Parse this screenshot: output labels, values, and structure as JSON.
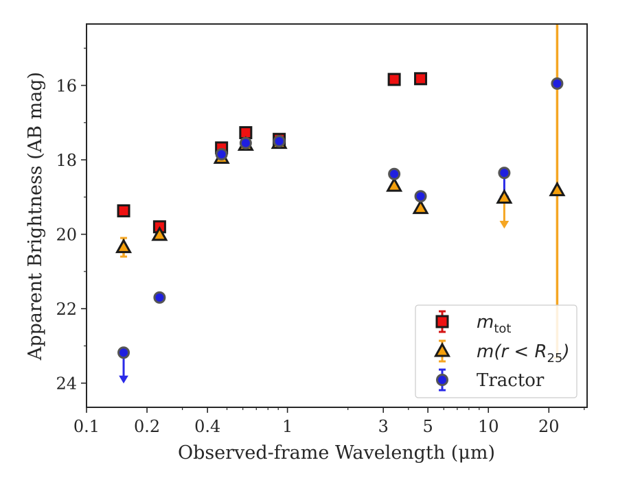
{
  "chart_data": {
    "type": "scatter",
    "x_scale": "log",
    "y_inverted": true,
    "xlabel": "Observed-frame Wavelength (μm)",
    "ylabel": "Apparent Brightness (AB mag)",
    "xlim": [
      0.1,
      31
    ],
    "ylim": [
      24.65,
      14.35
    ],
    "xticks": [
      0.1,
      0.2,
      0.4,
      1,
      3,
      5,
      10,
      20
    ],
    "xtick_labels": [
      "0.1",
      "0.2",
      "0.4",
      "1",
      "3",
      "5",
      "10",
      "20"
    ],
    "yticks": [
      16,
      18,
      20,
      22,
      24
    ],
    "ytick_labels": [
      "16",
      "18",
      "20",
      "22",
      "24"
    ],
    "legend_position": "lower-right",
    "legend": [
      {
        "series": "mtot",
        "label_main": "m",
        "label_sub": "tot"
      },
      {
        "series": "mr25",
        "label_main": "m(r < R",
        "label_sub": "25",
        "label_close": ")"
      },
      {
        "series": "tractor",
        "label_main": "Tractor"
      }
    ],
    "series": [
      {
        "key": "mtot",
        "marker": "square",
        "fill": "#ee1111",
        "error_color": "#d41414",
        "points": [
          {
            "x": 0.153,
            "y": 19.37,
            "err": 0.05
          },
          {
            "x": 0.231,
            "y": 19.8,
            "err": 0.05
          },
          {
            "x": 0.47,
            "y": 17.68,
            "err": 0.05
          },
          {
            "x": 0.62,
            "y": 17.27,
            "err": 0.05
          },
          {
            "x": 0.91,
            "y": 17.45,
            "err": 0.05
          },
          {
            "x": 3.4,
            "y": 15.84,
            "err": 0.05
          },
          {
            "x": 4.6,
            "y": 15.82,
            "err": 0.05
          }
        ]
      },
      {
        "key": "mr25",
        "marker": "triangle",
        "fill": "#f5a00c",
        "error_color": "#f5a623",
        "points": [
          {
            "x": 0.153,
            "y": 20.35,
            "err": 0.25
          },
          {
            "x": 0.231,
            "y": 20.02,
            "err": 0.05
          },
          {
            "x": 0.47,
            "y": 17.95,
            "err": 0.05
          },
          {
            "x": 0.62,
            "y": 17.6,
            "err": 0.05
          },
          {
            "x": 0.91,
            "y": 17.55,
            "err": 0.05
          },
          {
            "x": 3.4,
            "y": 18.7,
            "err": 0.05
          },
          {
            "x": 4.6,
            "y": 19.3,
            "err": 0.05
          },
          {
            "x": 12.0,
            "y": 19.02,
            "upper_limit": true
          },
          {
            "x": 22.0,
            "y": 18.82,
            "err_low": 4.5,
            "err_high": 4.5
          }
        ]
      },
      {
        "key": "tractor",
        "marker": "circle",
        "fill": "#1f1fdf",
        "error_color": "#2a2ae8",
        "points": [
          {
            "x": 0.153,
            "y": 23.18,
            "upper_limit": true
          },
          {
            "x": 0.231,
            "y": 21.7,
            "err": 0.05
          },
          {
            "x": 0.47,
            "y": 17.85,
            "err": 0.05
          },
          {
            "x": 0.62,
            "y": 17.55,
            "err": 0.05
          },
          {
            "x": 0.91,
            "y": 17.5,
            "err": 0.05
          },
          {
            "x": 3.4,
            "y": 18.38,
            "err": 0.05
          },
          {
            "x": 4.6,
            "y": 18.98,
            "err": 0.05
          },
          {
            "x": 12.0,
            "y": 18.35,
            "upper_limit": true
          },
          {
            "x": 22.0,
            "y": 15.95,
            "err": 0.05
          }
        ]
      }
    ]
  }
}
